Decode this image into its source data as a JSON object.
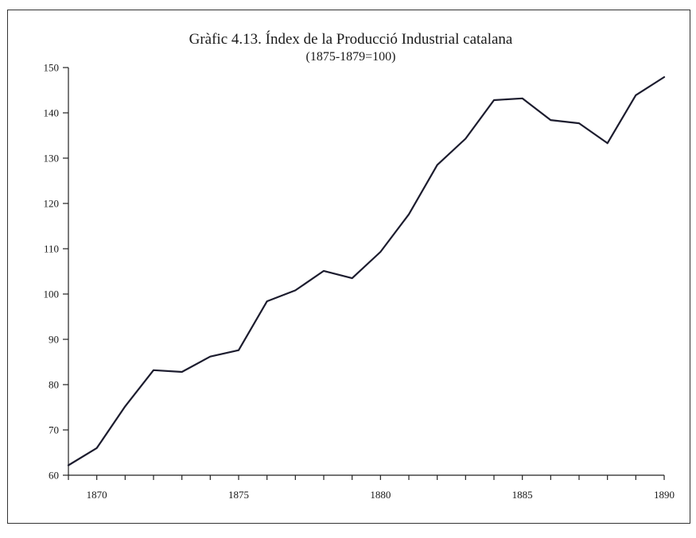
{
  "chart_data": {
    "type": "line",
    "title": "Gràfic 4.13. Índex de la Producció Industrial catalana",
    "subtitle": "(1875-1879=100)",
    "xlabel": "",
    "ylabel": "",
    "xlim": [
      1869,
      1890
    ],
    "ylim": [
      60,
      150
    ],
    "y_ticks": [
      60,
      70,
      80,
      90,
      100,
      110,
      120,
      130,
      140,
      150
    ],
    "x_ticks": [
      1869,
      1870,
      1871,
      1872,
      1873,
      1874,
      1875,
      1876,
      1877,
      1878,
      1879,
      1880,
      1881,
      1882,
      1883,
      1884,
      1885,
      1886,
      1887,
      1888,
      1889,
      1890
    ],
    "x_tick_labels": [
      1870,
      1875,
      1880,
      1885,
      1890
    ],
    "grid": false,
    "line_color": "#1c1c2e",
    "series": [
      {
        "x": [
          1869,
          1870,
          1871,
          1872,
          1873,
          1874,
          1875,
          1876,
          1877,
          1878,
          1879,
          1880,
          1881,
          1882,
          1883,
          1884,
          1885,
          1886,
          1887,
          1888,
          1889,
          1890
        ],
        "values": [
          62.2,
          66.0,
          75.2,
          83.2,
          82.8,
          86.2,
          87.6,
          98.4,
          100.8,
          105.1,
          103.5,
          109.3,
          117.6,
          128.5,
          134.3,
          142.8,
          143.2,
          138.4,
          137.7,
          133.3,
          143.9,
          147.9
        ]
      }
    ]
  }
}
